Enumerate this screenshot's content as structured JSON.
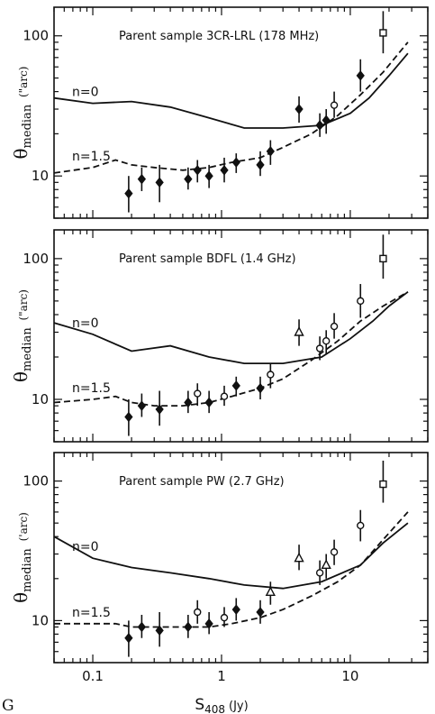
{
  "figure": {
    "corner_label": "G",
    "xlabel_main": "S",
    "xlabel_sub": "408",
    "xlabel_unit": "(Jy)",
    "ylabel_main": "θ",
    "ylabel_sub": "median",
    "ylabel_units": [
      "(\"arc)",
      "(\"arc)",
      "('arc)"
    ],
    "x_tick_labels": [
      "0.1",
      "1",
      "10"
    ],
    "y_tick_labels": [
      "100",
      "10"
    ]
  },
  "chart_data": [
    {
      "type": "scatter",
      "title": "Parent sample 3CR-LRL (178 MHz)",
      "xscale": "log",
      "yscale": "log",
      "xlim": [
        0.05,
        40
      ],
      "ylim": [
        5,
        160
      ],
      "curves": [
        {
          "name": "n=0",
          "style": "solid",
          "x": [
            0.05,
            0.1,
            0.2,
            0.4,
            0.8,
            1.5,
            3,
            6,
            10,
            14,
            20,
            28
          ],
          "y": [
            36,
            33,
            34,
            31,
            26,
            22,
            22,
            23,
            28,
            36,
            52,
            75
          ]
        },
        {
          "name": "n=1.5",
          "style": "dashed",
          "x": [
            0.05,
            0.1,
            0.15,
            0.2,
            0.3,
            0.5,
            0.8,
            1.2,
            2,
            3,
            5,
            8,
            12,
            18,
            28
          ],
          "y": [
            10.5,
            11.5,
            13,
            12,
            11.5,
            11,
            11.5,
            12.5,
            13.5,
            16,
            20,
            27,
            38,
            55,
            90
          ]
        }
      ],
      "points": [
        {
          "x": 0.19,
          "y": 7.5,
          "lo": 5.5,
          "hi": 10,
          "marker": "filled"
        },
        {
          "x": 0.24,
          "y": 9.5,
          "lo": 7.8,
          "hi": 11.5,
          "marker": "filled"
        },
        {
          "x": 0.33,
          "y": 9.0,
          "lo": 6.5,
          "hi": 12,
          "marker": "filled"
        },
        {
          "x": 0.55,
          "y": 9.5,
          "lo": 8,
          "hi": 11.5,
          "marker": "filled"
        },
        {
          "x": 0.65,
          "y": 11,
          "lo": 9,
          "hi": 13,
          "marker": "filled"
        },
        {
          "x": 0.8,
          "y": 10,
          "lo": 8.2,
          "hi": 12,
          "marker": "filled"
        },
        {
          "x": 1.05,
          "y": 11,
          "lo": 9,
          "hi": 13.5,
          "marker": "filled"
        },
        {
          "x": 1.3,
          "y": 12.5,
          "lo": 10.5,
          "hi": 14.5,
          "marker": "filled"
        },
        {
          "x": 2.0,
          "y": 12,
          "lo": 10,
          "hi": 15,
          "marker": "filled"
        },
        {
          "x": 2.4,
          "y": 15,
          "lo": 12,
          "hi": 18,
          "marker": "filled"
        },
        {
          "x": 4.0,
          "y": 30,
          "lo": 24,
          "hi": 37,
          "marker": "filled"
        },
        {
          "x": 5.8,
          "y": 23,
          "lo": 19,
          "hi": 28,
          "marker": "filled"
        },
        {
          "x": 6.5,
          "y": 25,
          "lo": 20,
          "hi": 30,
          "marker": "filled"
        },
        {
          "x": 7.5,
          "y": 32,
          "lo": 26,
          "hi": 40,
          "marker": "open"
        },
        {
          "x": 12,
          "y": 52,
          "lo": 40,
          "hi": 68,
          "marker": "filled"
        },
        {
          "x": 18,
          "y": 105,
          "lo": 75,
          "hi": 150,
          "marker": "open-square"
        }
      ]
    },
    {
      "type": "scatter",
      "title": "Parent sample BDFL (1.4 GHz)",
      "xscale": "log",
      "yscale": "log",
      "xlim": [
        0.05,
        40
      ],
      "ylim": [
        5,
        160
      ],
      "curves": [
        {
          "name": "n=0",
          "style": "solid",
          "x": [
            0.05,
            0.1,
            0.2,
            0.4,
            0.8,
            1.5,
            3,
            6,
            10,
            15,
            20,
            28
          ],
          "y": [
            35,
            29,
            22,
            24,
            20,
            18,
            18,
            20,
            27,
            36,
            46,
            58
          ]
        },
        {
          "name": "n=1.5",
          "style": "dashed",
          "x": [
            0.05,
            0.1,
            0.15,
            0.2,
            0.3,
            0.5,
            0.8,
            1.2,
            2,
            3,
            5,
            8,
            12,
            18,
            28
          ],
          "y": [
            9.5,
            10,
            10.5,
            9.5,
            9,
            9,
            9.5,
            10.5,
            12,
            14,
            19,
            26,
            36,
            46,
            58
          ]
        }
      ],
      "points": [
        {
          "x": 0.19,
          "y": 7.5,
          "lo": 5.5,
          "hi": 10,
          "marker": "filled"
        },
        {
          "x": 0.24,
          "y": 9,
          "lo": 7.5,
          "hi": 11,
          "marker": "filled"
        },
        {
          "x": 0.33,
          "y": 8.5,
          "lo": 6.5,
          "hi": 11.5,
          "marker": "filled"
        },
        {
          "x": 0.55,
          "y": 9.5,
          "lo": 8,
          "hi": 11.5,
          "marker": "filled"
        },
        {
          "x": 0.65,
          "y": 11,
          "lo": 9,
          "hi": 13,
          "marker": "open"
        },
        {
          "x": 0.8,
          "y": 9.5,
          "lo": 8,
          "hi": 11.5,
          "marker": "filled"
        },
        {
          "x": 1.05,
          "y": 10.5,
          "lo": 9,
          "hi": 12.5,
          "marker": "open"
        },
        {
          "x": 1.3,
          "y": 12.5,
          "lo": 10.5,
          "hi": 14.5,
          "marker": "filled"
        },
        {
          "x": 2.0,
          "y": 12,
          "lo": 10,
          "hi": 14.5,
          "marker": "filled"
        },
        {
          "x": 2.4,
          "y": 15,
          "lo": 12,
          "hi": 18,
          "marker": "open"
        },
        {
          "x": 4.0,
          "y": 30,
          "lo": 24,
          "hi": 37,
          "marker": "open-triangle"
        },
        {
          "x": 5.8,
          "y": 23,
          "lo": 19,
          "hi": 28,
          "marker": "open"
        },
        {
          "x": 6.5,
          "y": 26,
          "lo": 21,
          "hi": 31,
          "marker": "open"
        },
        {
          "x": 7.5,
          "y": 33,
          "lo": 27,
          "hi": 41,
          "marker": "open"
        },
        {
          "x": 12,
          "y": 50,
          "lo": 38,
          "hi": 66,
          "marker": "open"
        },
        {
          "x": 18,
          "y": 100,
          "lo": 72,
          "hi": 148,
          "marker": "open-square"
        }
      ]
    },
    {
      "type": "scatter",
      "title": "Parent sample PW (2.7 GHz)",
      "xscale": "log",
      "yscale": "log",
      "xlim": [
        0.05,
        40
      ],
      "ylim": [
        5,
        160
      ],
      "curves": [
        {
          "name": "n=0",
          "style": "solid",
          "x": [
            0.05,
            0.1,
            0.2,
            0.4,
            0.8,
            1.5,
            3,
            6,
            12,
            18,
            28
          ],
          "y": [
            40,
            28,
            24,
            22,
            20,
            18,
            17,
            19,
            25,
            36,
            50
          ]
        },
        {
          "name": "n=1.5",
          "style": "dashed",
          "x": [
            0.05,
            0.1,
            0.15,
            0.2,
            0.3,
            0.5,
            0.8,
            1.2,
            2,
            3,
            5,
            8,
            12,
            18,
            28
          ],
          "y": [
            9.5,
            9.5,
            9.5,
            9,
            9,
            9,
            9,
            9.5,
            10.5,
            12,
            15,
            19,
            25,
            38,
            60
          ]
        }
      ],
      "points": [
        {
          "x": 0.19,
          "y": 7.5,
          "lo": 5.5,
          "hi": 10,
          "marker": "filled"
        },
        {
          "x": 0.24,
          "y": 9,
          "lo": 7.5,
          "hi": 11,
          "marker": "filled"
        },
        {
          "x": 0.33,
          "y": 8.5,
          "lo": 6.5,
          "hi": 11.5,
          "marker": "filled"
        },
        {
          "x": 0.55,
          "y": 9,
          "lo": 7.5,
          "hi": 11,
          "marker": "filled"
        },
        {
          "x": 0.65,
          "y": 11.5,
          "lo": 9.5,
          "hi": 14,
          "marker": "open"
        },
        {
          "x": 0.8,
          "y": 9.5,
          "lo": 8,
          "hi": 11.5,
          "marker": "filled"
        },
        {
          "x": 1.05,
          "y": 10.5,
          "lo": 9,
          "hi": 12.5,
          "marker": "open"
        },
        {
          "x": 1.3,
          "y": 12,
          "lo": 10,
          "hi": 14.5,
          "marker": "filled"
        },
        {
          "x": 2.0,
          "y": 11.5,
          "lo": 9.5,
          "hi": 14,
          "marker": "filled"
        },
        {
          "x": 2.4,
          "y": 16,
          "lo": 13,
          "hi": 19,
          "marker": "open-triangle"
        },
        {
          "x": 4.0,
          "y": 28,
          "lo": 23,
          "hi": 35,
          "marker": "open-triangle"
        },
        {
          "x": 5.8,
          "y": 22,
          "lo": 18,
          "hi": 27,
          "marker": "open"
        },
        {
          "x": 6.5,
          "y": 25,
          "lo": 20,
          "hi": 30,
          "marker": "open-triangle"
        },
        {
          "x": 7.5,
          "y": 31,
          "lo": 25,
          "hi": 38,
          "marker": "open"
        },
        {
          "x": 12,
          "y": 48,
          "lo": 37,
          "hi": 62,
          "marker": "open"
        },
        {
          "x": 18,
          "y": 95,
          "lo": 70,
          "hi": 140,
          "marker": "open-square"
        }
      ]
    }
  ]
}
